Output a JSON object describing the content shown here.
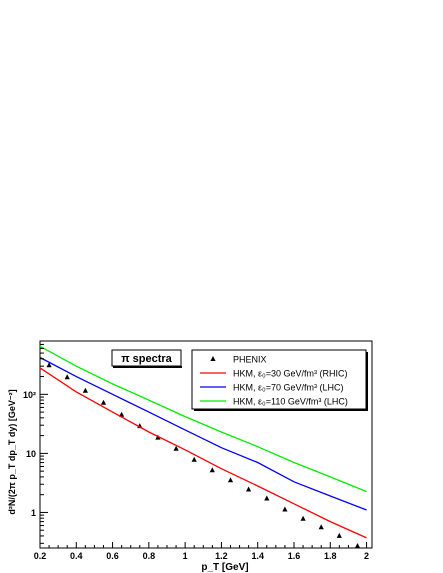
{
  "chart_data": {
    "type": "line",
    "title": "",
    "plot_label": "π spectra",
    "xlabel": "p_T [GeV]",
    "ylabel": "d²N/(2π p_T dp_T dy) [GeV⁻²]",
    "xlim": [
      0.2,
      2.03
    ],
    "ylim": [
      0.25,
      800
    ],
    "y_scale": "log",
    "grid": false,
    "legend_position": "top-right",
    "x_ticks": [
      0.2,
      0.4,
      0.6,
      0.8,
      1,
      1.2,
      1.4,
      1.6,
      1.8,
      2
    ],
    "x_tick_labels": [
      "0.2",
      "0.4",
      "0.6",
      "0.8",
      "1",
      "1.2",
      "1.4",
      "1.6",
      "1.8",
      "2"
    ],
    "y_ticks": [
      1,
      10,
      100
    ],
    "y_tick_labels": [
      "1",
      "10",
      "10²"
    ],
    "series": [
      {
        "name": "PHENIX",
        "kind": "points",
        "marker": "triangle",
        "color": "#000000",
        "x": [
          0.25,
          0.35,
          0.45,
          0.55,
          0.65,
          0.75,
          0.85,
          0.95,
          1.05,
          1.15,
          1.25,
          1.35,
          1.45,
          1.55,
          1.65,
          1.75,
          1.85,
          1.95
        ],
        "y": [
          310,
          195,
          115,
          72,
          45,
          29,
          18.5,
          12,
          7.8,
          5.2,
          3.5,
          2.45,
          1.72,
          1.12,
          0.78,
          0.56,
          0.4,
          0.27
        ]
      },
      {
        "name": "HKM, ε₀=30 GeV/fm³ (RHIC)",
        "kind": "line",
        "color": "#ff0000",
        "x": [
          0.2,
          0.4,
          0.6,
          0.8,
          1.0,
          1.2,
          1.4,
          1.6,
          1.8,
          2.0
        ],
        "y": [
          280,
          110,
          50,
          23,
          11.5,
          5.5,
          2.8,
          1.4,
          0.7,
          0.37
        ]
      },
      {
        "name": "HKM, ε₀=70 GeV/fm³ (LHC)",
        "kind": "line",
        "color": "#0000ff",
        "x": [
          0.2,
          0.4,
          0.6,
          0.8,
          1.0,
          1.2,
          1.4,
          1.6,
          1.8,
          2.0
        ],
        "y": [
          420,
          200,
          100,
          50,
          25,
          12.5,
          7,
          3.3,
          1.9,
          1.1
        ]
      },
      {
        "name": "HKM, ε₀=110 GeV/fm³ (LHC)",
        "kind": "line",
        "color": "#00ee00",
        "x": [
          0.2,
          0.4,
          0.6,
          0.8,
          1.0,
          1.2,
          1.4,
          1.6,
          1.8,
          2.0
        ],
        "y": [
          650,
          300,
          150,
          80,
          42,
          23,
          13,
          7,
          4,
          2.25
        ]
      }
    ]
  }
}
